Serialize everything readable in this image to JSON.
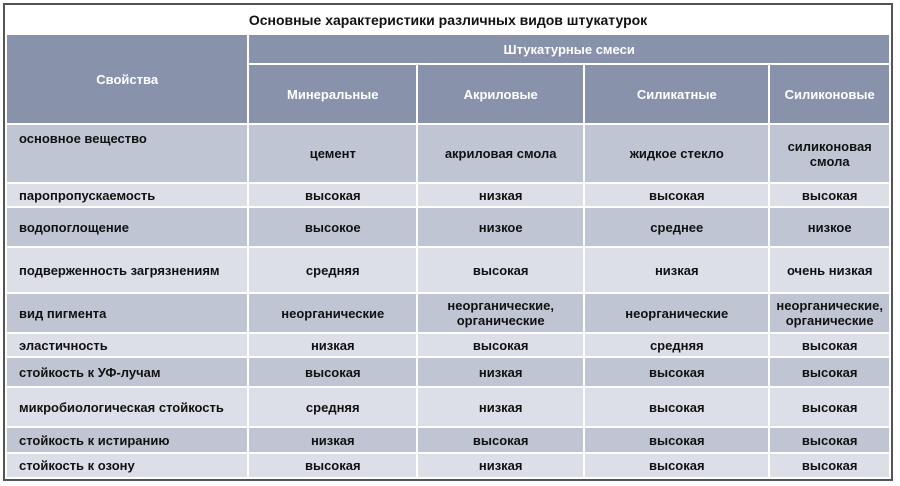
{
  "title": "Основные характеристики различных видов штукатурок",
  "header": {
    "property_col": "Свойства",
    "group": "Штукатурные смеси",
    "columns": [
      "Минеральные",
      "Акриловые",
      "Силикатные",
      "Силиконовые"
    ]
  },
  "colors": {
    "header_bg": "#8892ab",
    "row_dark": "#c0c5d4",
    "row_light": "#dcdfe8"
  },
  "rows": [
    {
      "property": "основное вещество",
      "values": [
        "цемент",
        "акриловая смола",
        "жидкое стекло",
        "силиконовая смола"
      ]
    },
    {
      "property": "паропропускаемость",
      "values": [
        "высокая",
        "низкая",
        "высокая",
        "высокая"
      ]
    },
    {
      "property": "водопоглощение",
      "values": [
        "высокое",
        "низкое",
        "среднее",
        "низкое"
      ]
    },
    {
      "property": "подверженность загрязнениям",
      "values": [
        "средняя",
        "высокая",
        "низкая",
        "очень низкая"
      ]
    },
    {
      "property": "вид пигмента",
      "values": [
        "неорганические",
        "неорганические, органические",
        "неорганические",
        "неорганические, органические"
      ]
    },
    {
      "property": "эластичность",
      "values": [
        "низкая",
        "высокая",
        "средняя",
        "высокая"
      ]
    },
    {
      "property": "стойкость к УФ-лучам",
      "values": [
        "высокая",
        "низкая",
        "высокая",
        "высокая"
      ]
    },
    {
      "property": "микробиологическая стойкость",
      "values": [
        "средняя",
        "низкая",
        "высокая",
        "высокая"
      ]
    },
    {
      "property": "стойкость к истиранию",
      "values": [
        "низкая",
        "высокая",
        "высокая",
        "высокая"
      ]
    },
    {
      "property": "стойкость к озону",
      "values": [
        "высокая",
        "низкая",
        "высокая",
        "высокая"
      ]
    }
  ]
}
